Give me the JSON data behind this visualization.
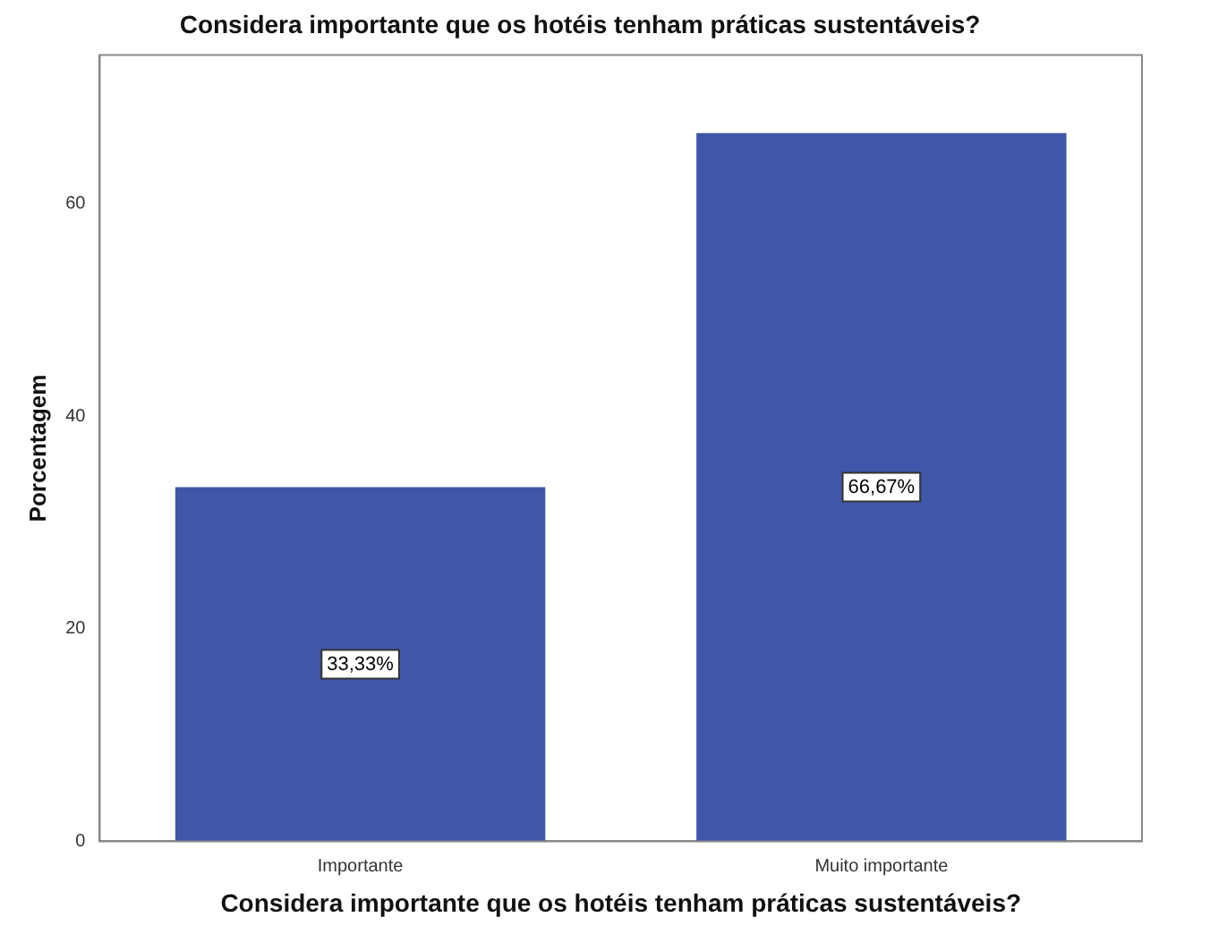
{
  "chart_data": {
    "type": "bar",
    "title": "Considera importante que os hotéis tenham práticas sustentáveis?",
    "xlabel": "Considera importante que os hotéis tenham práticas sustentáveis?",
    "ylabel": "Porcentagem",
    "categories": [
      "Importante",
      "Muito importante"
    ],
    "values": [
      33.33,
      66.67
    ],
    "value_labels": [
      "33,33%",
      "66,67%"
    ],
    "color": "#3f57a9",
    "ylim": [
      0,
      74
    ],
    "yticks": [
      0,
      20,
      40,
      60
    ],
    "grid": false,
    "legend": false
  }
}
